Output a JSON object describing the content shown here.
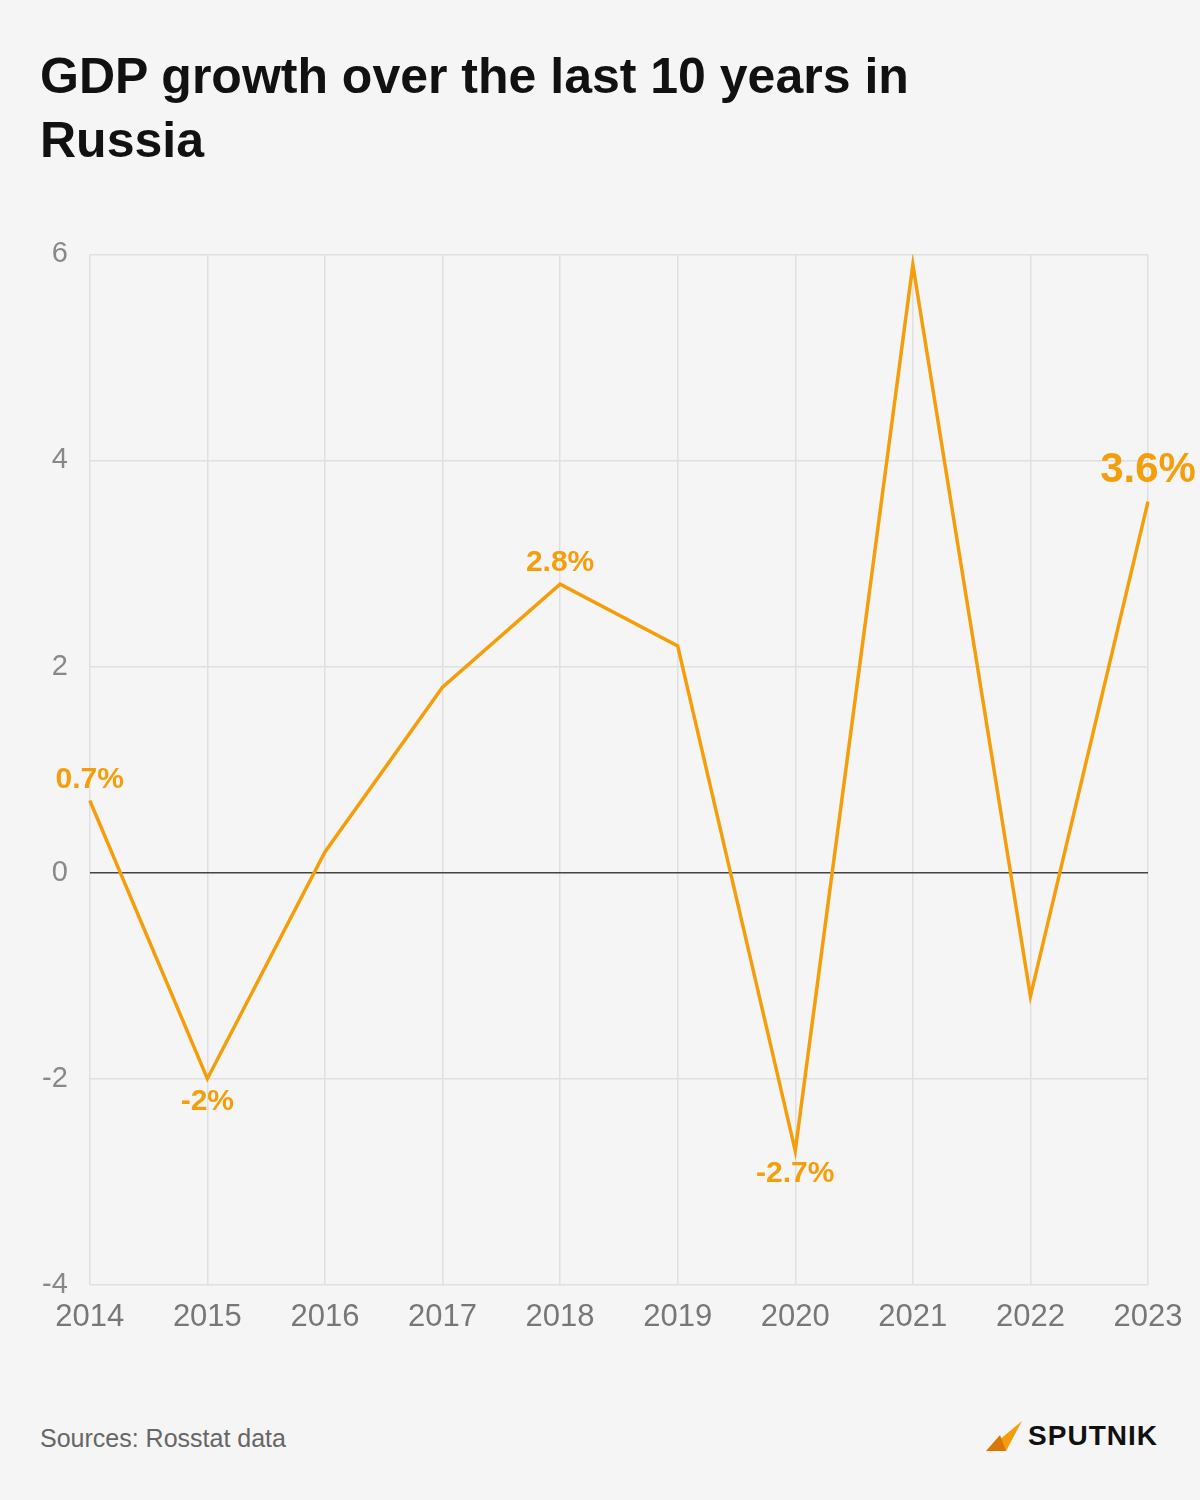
{
  "chart_data": {
    "type": "line",
    "title": "GDP growth over the last 10 years in Russia",
    "categories": [
      "2014",
      "2015",
      "2016",
      "2017",
      "2018",
      "2019",
      "2020",
      "2021",
      "2022",
      "2023"
    ],
    "values": [
      0.7,
      -2,
      0.2,
      1.8,
      2.8,
      2.2,
      -2.7,
      5.9,
      -1.2,
      3.6
    ],
    "value_labels": [
      "0.7%",
      "-2%",
      null,
      null,
      "2.8%",
      null,
      "-2.7%",
      null,
      null,
      "3.6%"
    ],
    "data_labels": true,
    "color": "#f59e0b",
    "ylim": [
      -4,
      6
    ],
    "yticks": [
      -4,
      -2,
      0,
      2,
      4,
      6
    ],
    "grid": true,
    "source": "Sources: Rosstat data",
    "logo": "SPUTNIK"
  }
}
